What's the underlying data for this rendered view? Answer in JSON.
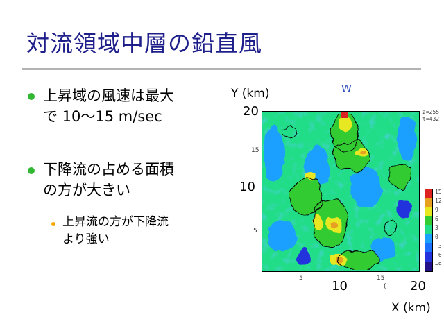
{
  "slide": {
    "title": "対流領域中層の鉛直風",
    "bullets": [
      {
        "line1": "上昇域の風速は最大",
        "line2": "で 10～15 m/sec"
      },
      {
        "line1": "下降流の占める面積",
        "line2": "の方が大きい"
      }
    ],
    "sub_bullet": {
      "line1": "上昇流の方が下降流",
      "line2": "より強い"
    }
  },
  "figure": {
    "variable_label": "W",
    "y_axis_title": "Y (km)",
    "x_axis_title": "X (km)",
    "y_big_ticks": [
      "20",
      "10"
    ],
    "x_big_ticks": [
      "10",
      "20"
    ],
    "y_small_ticks": [
      "15",
      "5"
    ],
    "x_small_ticks": [
      "5",
      "15"
    ],
    "stray_label": "(",
    "info_lines": [
      "z=255",
      "t=432"
    ],
    "colorbar_ticks": [
      "15",
      "12",
      "9",
      "6",
      "3",
      "0",
      "−3",
      "−6",
      "−9"
    ],
    "colors": {
      "strong_down": "#2233dd",
      "down": "#1aa0ff",
      "weak": "#22dd88",
      "neutral": "#33cc33",
      "up": "#e8e820",
      "strong_up": "#e8a020",
      "max_up": "#dd2222"
    }
  },
  "colors": {
    "title": "#1f1f8c",
    "bullet": "#33b833",
    "sub_bullet": "#f5a700",
    "rule": "#b3b3b3"
  }
}
